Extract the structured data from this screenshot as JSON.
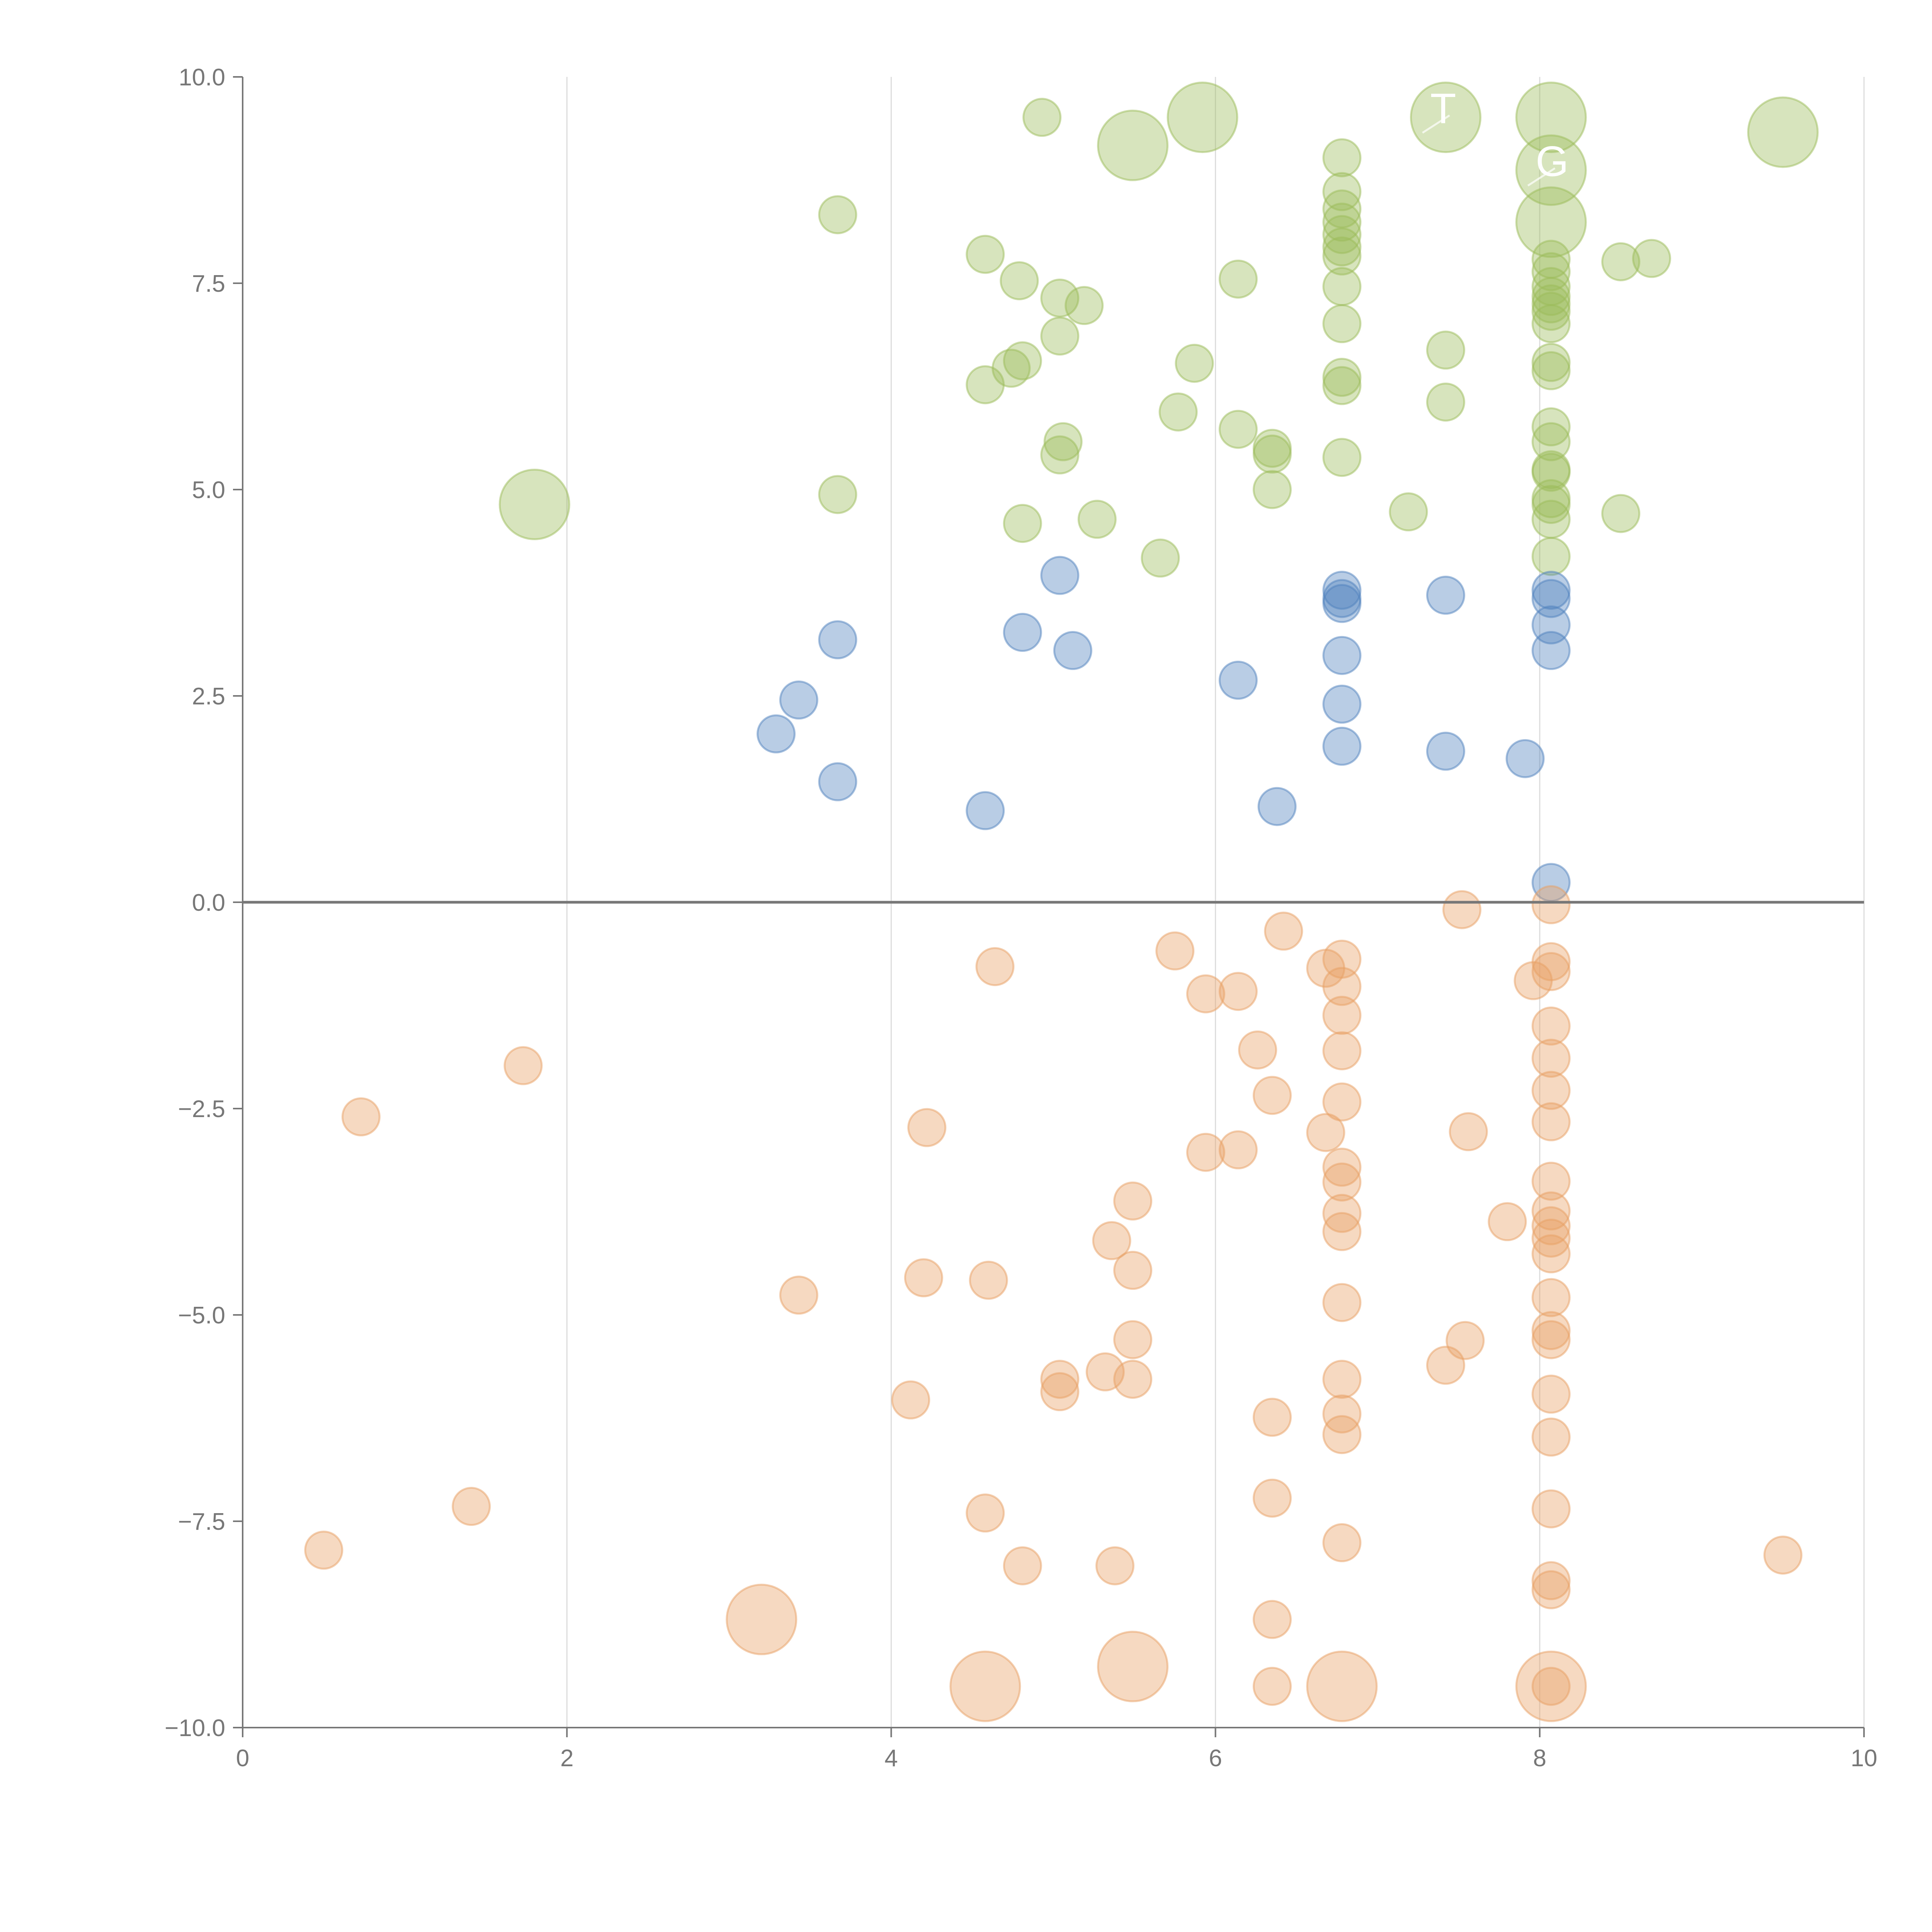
{
  "chart_data": {
    "type": "scatter",
    "title": "",
    "xlabel": "",
    "ylabel": "",
    "xlim": [
      0,
      10
    ],
    "ylim": [
      -10,
      10
    ],
    "grid": "vertical lines at x ticks",
    "x_ticks": [
      "0",
      "2",
      "4",
      "6",
      "8",
      "10"
    ],
    "y_ticks": [
      "10.0",
      "7.5",
      "5.0",
      "2.5",
      "0.0",
      "−2.5",
      "−5.0",
      "−7.5",
      "−10.0"
    ],
    "x_tick_values": [
      0,
      2,
      4,
      6,
      8,
      10
    ],
    "y_tick_values": [
      10,
      7.5,
      5,
      2.5,
      0,
      -2.5,
      -5,
      -7.5,
      -10
    ],
    "point_format": "[x, y, size_class] where size_class 1=normal bubble, 2=large bubble",
    "series": [
      {
        "name": "green",
        "color": "#9bbb59",
        "points": [
          [
            3.67,
            8.33,
            1
          ],
          [
            4.93,
            9.51,
            1
          ],
          [
            5.49,
            9.17,
            2
          ],
          [
            5.92,
            9.51,
            2
          ],
          [
            7.42,
            9.51,
            2
          ],
          [
            8.07,
            9.51,
            2
          ],
          [
            8.07,
            8.87,
            2
          ],
          [
            8.07,
            8.24,
            2
          ],
          [
            9.5,
            9.33,
            2
          ],
          [
            6.78,
            9.02,
            1
          ],
          [
            6.78,
            8.61,
            1
          ],
          [
            6.78,
            8.4,
            1
          ],
          [
            6.78,
            8.24,
            1
          ],
          [
            6.78,
            8.09,
            1
          ],
          [
            6.78,
            7.94,
            1
          ],
          [
            6.78,
            7.83,
            1
          ],
          [
            6.78,
            7.46,
            1
          ],
          [
            6.78,
            7.01,
            1
          ],
          [
            6.78,
            6.36,
            1
          ],
          [
            6.78,
            6.26,
            1
          ],
          [
            6.78,
            5.39,
            1
          ],
          [
            4.58,
            7.85,
            1
          ],
          [
            4.79,
            7.53,
            1
          ],
          [
            5.04,
            7.32,
            1
          ],
          [
            5.19,
            7.23,
            1
          ],
          [
            6.14,
            7.55,
            1
          ],
          [
            5.04,
            6.86,
            1
          ],
          [
            4.81,
            6.56,
            1
          ],
          [
            4.74,
            6.47,
            1
          ],
          [
            4.58,
            6.27,
            1
          ],
          [
            5.87,
            6.53,
            1
          ],
          [
            5.77,
            5.94,
            1
          ],
          [
            6.14,
            5.73,
            1
          ],
          [
            5.06,
            5.58,
            1
          ],
          [
            5.04,
            5.42,
            1
          ],
          [
            6.35,
            5.5,
            1
          ],
          [
            6.35,
            5.43,
            1
          ],
          [
            6.35,
            5.0,
            1
          ],
          [
            3.67,
            4.94,
            1
          ],
          [
            1.8,
            4.82,
            2
          ],
          [
            4.81,
            4.59,
            1
          ],
          [
            5.27,
            4.64,
            1
          ],
          [
            5.66,
            4.17,
            1
          ],
          [
            7.19,
            4.73,
            1
          ],
          [
            7.42,
            6.69,
            1
          ],
          [
            7.42,
            6.06,
            1
          ],
          [
            8.5,
            7.76,
            1
          ],
          [
            8.69,
            7.8,
            1
          ],
          [
            8.5,
            4.71,
            1
          ],
          [
            8.07,
            7.79,
            1
          ],
          [
            8.07,
            7.64,
            1
          ],
          [
            8.07,
            7.46,
            1
          ],
          [
            8.07,
            7.34,
            1
          ],
          [
            8.07,
            7.25,
            1
          ],
          [
            8.07,
            7.16,
            1
          ],
          [
            8.07,
            7.01,
            1
          ],
          [
            8.07,
            6.54,
            1
          ],
          [
            8.07,
            6.44,
            1
          ],
          [
            8.07,
            5.76,
            1
          ],
          [
            8.07,
            5.58,
            1
          ],
          [
            8.07,
            5.24,
            1
          ],
          [
            8.07,
            5.21,
            1
          ],
          [
            8.07,
            4.89,
            1
          ],
          [
            8.07,
            4.82,
            1
          ],
          [
            8.07,
            4.64,
            1
          ],
          [
            8.07,
            4.19,
            1
          ]
        ]
      },
      {
        "name": "blue",
        "color": "#4f81bd",
        "points": [
          [
            5.04,
            3.96,
            1
          ],
          [
            3.67,
            3.18,
            1
          ],
          [
            4.81,
            3.27,
            1
          ],
          [
            5.12,
            3.05,
            1
          ],
          [
            3.43,
            2.45,
            1
          ],
          [
            3.29,
            2.04,
            1
          ],
          [
            3.67,
            1.46,
            1
          ],
          [
            4.58,
            1.11,
            1
          ],
          [
            6.14,
            2.69,
            1
          ],
          [
            6.38,
            1.16,
            1
          ],
          [
            6.78,
            3.78,
            1
          ],
          [
            6.78,
            3.68,
            1
          ],
          [
            6.78,
            3.62,
            1
          ],
          [
            6.78,
            2.99,
            1
          ],
          [
            6.78,
            2.4,
            1
          ],
          [
            6.78,
            1.89,
            1
          ],
          [
            7.42,
            3.72,
            1
          ],
          [
            7.42,
            1.83,
            1
          ],
          [
            7.91,
            1.74,
            1
          ],
          [
            8.07,
            3.78,
            1
          ],
          [
            8.07,
            3.68,
            1
          ],
          [
            8.07,
            3.36,
            1
          ],
          [
            8.07,
            3.05,
            1
          ],
          [
            8.07,
            0.24,
            1
          ]
        ]
      },
      {
        "name": "orange",
        "color": "#e8a064",
        "points": [
          [
            7.52,
            -0.09,
            1
          ],
          [
            8.07,
            -0.03,
            1
          ],
          [
            6.42,
            -0.35,
            1
          ],
          [
            5.75,
            -0.59,
            1
          ],
          [
            4.64,
            -0.78,
            1
          ],
          [
            6.78,
            -0.69,
            1
          ],
          [
            6.68,
            -0.8,
            1
          ],
          [
            6.78,
            -1.02,
            1
          ],
          [
            8.07,
            -0.72,
            1
          ],
          [
            8.07,
            -0.84,
            1
          ],
          [
            7.96,
            -0.95,
            1
          ],
          [
            5.94,
            -1.11,
            1
          ],
          [
            6.14,
            -1.08,
            1
          ],
          [
            6.78,
            -1.37,
            1
          ],
          [
            8.07,
            -1.5,
            1
          ],
          [
            6.26,
            -1.79,
            1
          ],
          [
            6.78,
            -1.8,
            1
          ],
          [
            8.07,
            -1.89,
            1
          ],
          [
            1.73,
            -1.98,
            1
          ],
          [
            0.73,
            -2.6,
            1
          ],
          [
            6.35,
            -2.34,
            1
          ],
          [
            6.78,
            -2.42,
            1
          ],
          [
            8.07,
            -2.28,
            1
          ],
          [
            8.07,
            -2.66,
            1
          ],
          [
            4.22,
            -2.73,
            1
          ],
          [
            6.68,
            -2.79,
            1
          ],
          [
            7.56,
            -2.78,
            1
          ],
          [
            5.94,
            -3.03,
            1
          ],
          [
            6.14,
            -3.0,
            1
          ],
          [
            6.78,
            -3.21,
            1
          ],
          [
            6.78,
            -3.39,
            1
          ],
          [
            8.07,
            -3.38,
            1
          ],
          [
            5.49,
            -3.62,
            1
          ],
          [
            6.78,
            -3.77,
            1
          ],
          [
            6.78,
            -3.99,
            1
          ],
          [
            7.8,
            -3.87,
            1
          ],
          [
            8.07,
            -3.74,
            1
          ],
          [
            8.07,
            -3.92,
            1
          ],
          [
            8.07,
            -4.07,
            1
          ],
          [
            8.07,
            -4.26,
            1
          ],
          [
            5.36,
            -4.1,
            1
          ],
          [
            5.49,
            -4.46,
            1
          ],
          [
            4.2,
            -4.55,
            1
          ],
          [
            4.6,
            -4.58,
            1
          ],
          [
            3.43,
            -4.76,
            1
          ],
          [
            6.78,
            -4.85,
            1
          ],
          [
            8.07,
            -4.79,
            1
          ],
          [
            8.07,
            -5.19,
            1
          ],
          [
            8.07,
            -5.3,
            1
          ],
          [
            5.49,
            -5.3,
            1
          ],
          [
            7.54,
            -5.31,
            1
          ],
          [
            7.42,
            -5.61,
            1
          ],
          [
            5.32,
            -5.69,
            1
          ],
          [
            5.04,
            -5.78,
            1
          ],
          [
            5.04,
            -5.93,
            1
          ],
          [
            5.49,
            -5.78,
            1
          ],
          [
            6.78,
            -5.78,
            1
          ],
          [
            4.12,
            -6.03,
            1
          ],
          [
            8.07,
            -5.96,
            1
          ],
          [
            6.35,
            -6.24,
            1
          ],
          [
            6.78,
            -6.2,
            1
          ],
          [
            6.78,
            -6.45,
            1
          ],
          [
            8.07,
            -6.48,
            1
          ],
          [
            1.41,
            -7.32,
            1
          ],
          [
            6.35,
            -7.22,
            1
          ],
          [
            4.58,
            -7.4,
            1
          ],
          [
            8.07,
            -7.35,
            1
          ],
          [
            0.5,
            -7.85,
            1
          ],
          [
            6.78,
            -7.76,
            1
          ],
          [
            9.5,
            -7.91,
            1
          ],
          [
            4.81,
            -8.04,
            1
          ],
          [
            5.38,
            -8.04,
            1
          ],
          [
            8.07,
            -8.22,
            1
          ],
          [
            8.07,
            -8.33,
            1
          ],
          [
            3.2,
            -8.69,
            2
          ],
          [
            6.35,
            -8.69,
            1
          ],
          [
            5.49,
            -9.26,
            2
          ],
          [
            4.58,
            -9.5,
            2
          ],
          [
            6.78,
            -9.5,
            2
          ],
          [
            8.07,
            -9.5,
            2
          ],
          [
            6.35,
            -9.5,
            1
          ],
          [
            8.07,
            -9.5,
            1
          ]
        ]
      }
    ],
    "annotations": [
      {
        "text": "T",
        "x": 7.42,
        "y": 9.51
      },
      {
        "text": "G",
        "x": 8.07,
        "y": 8.87
      }
    ]
  }
}
